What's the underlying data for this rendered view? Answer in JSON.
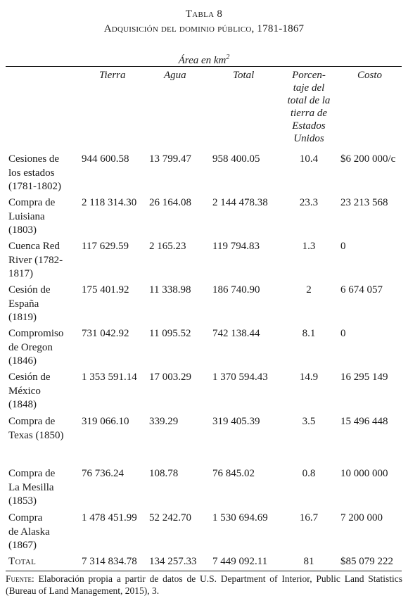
{
  "table": {
    "number": "Tabla 8",
    "title": "Adquisición del dominio público, 1781-1867",
    "area_header": "Área en km",
    "area_header_sup": "2",
    "columns": {
      "tierra": "Tierra",
      "agua": "Agua",
      "total": "Total",
      "porc_lines": [
        "Porcen-",
        "taje del",
        "total de la",
        "tierra de",
        "Estados",
        "Unidos"
      ],
      "costo": "Costo"
    },
    "rows": [
      {
        "name_lines": [
          "Cesiones de",
          "los estados",
          "(1781-1802)"
        ],
        "tierra": "944 600.58",
        "agua": "13 799.47",
        "total": "958 400.05",
        "porc": "10.4",
        "costo": "$6 200 000/c"
      },
      {
        "name_lines": [
          "Compra de",
          "Luisiana",
          "(1803)"
        ],
        "tierra": "2 118 314.30",
        "agua": "26 164.08",
        "total": "2 144 478.38",
        "porc": "23.3",
        "costo": "23 213 568"
      },
      {
        "name_lines": [
          "Cuenca Red",
          "River (1782-",
          "1817)"
        ],
        "tierra": "117 629.59",
        "agua": "2 165.23",
        "total": "119 794.83",
        "porc": "1.3",
        "costo": "0"
      },
      {
        "name_lines": [
          "Cesión de",
          "España",
          "(1819)"
        ],
        "tierra": "175 401.92",
        "agua": "11 338.98",
        "total": "186 740.90",
        "porc": "2",
        "costo": "6 674 057"
      },
      {
        "name_lines": [
          "Compromiso",
          "de Oregon",
          "(1846)"
        ],
        "tierra": "731 042.92",
        "agua": "11 095.52",
        "total": "742 138.44",
        "porc": "8.1",
        "costo": "0"
      },
      {
        "name_lines": [
          "Cesión de",
          "México",
          "(1848)"
        ],
        "tierra": "1 353 591.14",
        "agua": "17 003.29",
        "total": "1 370 594.43",
        "porc": "14.9",
        "costo": "16 295 149"
      },
      {
        "name_lines": [
          "Compra de",
          "Texas (1850)"
        ],
        "tierra": "319 066.10",
        "agua": "339.29",
        "total": "319 405.39",
        "porc": "3.5",
        "costo": "15 496 448"
      },
      {
        "name_lines": [
          "Compra de",
          "La Mesilla",
          "(1853)"
        ],
        "tierra": "76 736.24",
        "agua": "108.78",
        "total": "76 845.02",
        "porc": "0.8",
        "costo": "10 000 000"
      },
      {
        "name_lines": [
          "Compra",
          "de Alaska",
          "(1867)"
        ],
        "tierra": "1 478 451.99",
        "agua": "52 242.70",
        "total": "1 530 694.69",
        "porc": "16.7",
        "costo": "7 200 000"
      }
    ],
    "total_row": {
      "name": "Total",
      "tierra": "7 314 834.78",
      "agua": "134 257.33",
      "total": "7 449 092.11",
      "porc": "81",
      "costo": "$85 079 222"
    },
    "source_label": "Fuente:",
    "source_text": " Elaboración propia a partir de datos de U.S. Department of Interior, Public Land Statistics (Bureau of Land Management, 2015), 3."
  }
}
